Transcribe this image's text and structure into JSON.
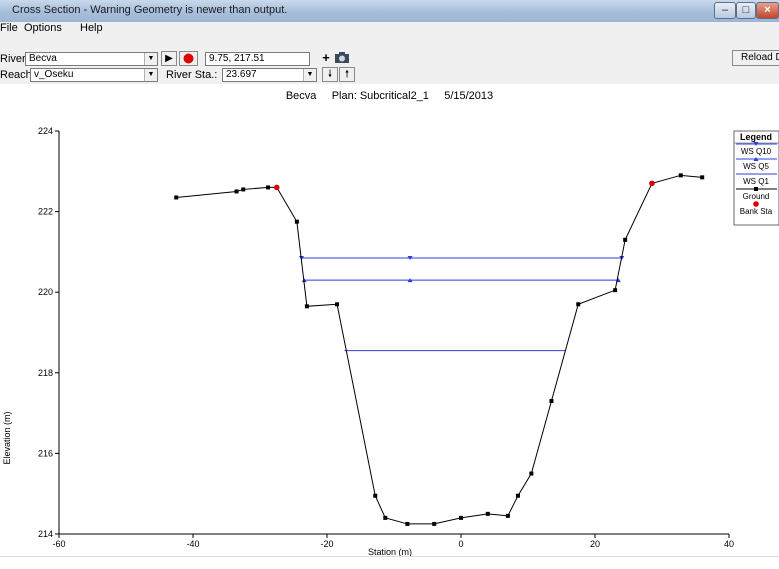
{
  "window": {
    "title": "Cross Section - Warning Geometry is newer than output."
  },
  "menu": {
    "file": "File",
    "options": "Options",
    "help": "Help"
  },
  "toolbar": {
    "river_label": "River:",
    "river_value": "Becva",
    "reach_label": "Reach:",
    "reach_value": "v_Oseku",
    "coord_value": "9.75, 217.51",
    "river_sta_label": "River Sta.:",
    "river_sta_value": "23.697",
    "reload_label": "Reload Da"
  },
  "plot_header": {
    "river": "Becva",
    "plan": "Plan: Subcritical2_1",
    "date": "5/15/2013"
  },
  "chart_data": {
    "type": "line",
    "xlabel": "Station (m)",
    "ylabel": "Elevation (m)",
    "xlim": [
      -60,
      40
    ],
    "ylim": [
      214,
      224
    ],
    "xticks": [
      -60,
      -40,
      -20,
      0,
      20,
      40
    ],
    "yticks": [
      214,
      216,
      218,
      220,
      222,
      224
    ],
    "legend_position": "top-right",
    "legend_title": "Legend",
    "series": [
      {
        "name": "WS Q10",
        "color": "#2b3fd6",
        "marker": "triangle-down",
        "x": [
          -23.8,
          -7.6,
          24.0
        ],
        "y": [
          220.85,
          220.85,
          220.85
        ]
      },
      {
        "name": "WS Q5",
        "color": "#2b3fd6",
        "marker": "triangle-up",
        "x": [
          -23.4,
          -7.6,
          23.5
        ],
        "y": [
          220.3,
          220.3,
          220.3
        ]
      },
      {
        "name": "WS Q1",
        "color": "#2b3fd6",
        "marker": "none",
        "x": [
          -17.4,
          15.6
        ],
        "y": [
          218.55,
          218.55
        ]
      },
      {
        "name": "Ground",
        "color": "#000000",
        "marker": "square",
        "x": [
          -42.5,
          -33.5,
          -32.5,
          -28.8,
          -27.5,
          -24.5,
          -23.0,
          -18.5,
          -12.8,
          -11.3,
          -8.0,
          -4.0,
          0.0,
          4.0,
          7.0,
          8.5,
          10.5,
          13.5,
          17.5,
          23.0,
          24.5,
          28.5,
          32.8,
          36.0
        ],
        "y": [
          222.35,
          222.5,
          222.55,
          222.6,
          222.6,
          221.75,
          219.65,
          219.7,
          214.95,
          214.4,
          214.25,
          214.25,
          214.4,
          214.5,
          214.45,
          214.95,
          215.5,
          217.3,
          219.7,
          220.05,
          221.3,
          222.7,
          222.9,
          222.85
        ]
      },
      {
        "name": "Bank Sta",
        "color": "#e00000",
        "marker": "dot",
        "x": [
          -27.5,
          28.5
        ],
        "y": [
          222.6,
          222.7
        ]
      }
    ]
  }
}
